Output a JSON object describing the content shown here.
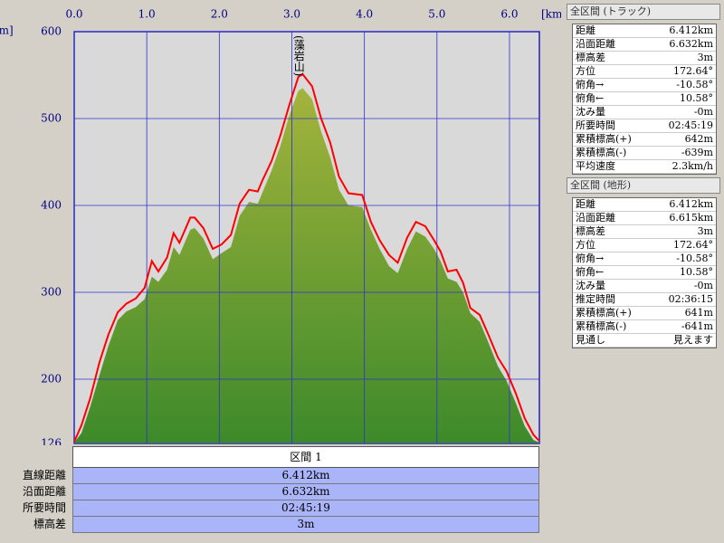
{
  "chart_data": {
    "type": "area",
    "x": [
      0,
      0.1,
      0.22,
      0.35,
      0.47,
      0.6,
      0.72,
      0.85,
      0.97,
      1.07,
      1.16,
      1.28,
      1.37,
      1.45,
      1.6,
      1.66,
      1.78,
      1.91,
      2.03,
      2.16,
      2.28,
      2.41,
      2.53,
      2.59,
      2.72,
      2.84,
      2.97,
      3.09,
      3.15,
      3.28,
      3.4,
      3.53,
      3.65,
      3.78,
      3.97,
      4.09,
      4.21,
      4.34,
      4.46,
      4.59,
      4.71,
      4.84,
      4.96,
      5.05,
      5.15,
      5.27,
      5.36,
      5.46,
      5.59,
      5.71,
      5.84,
      5.96,
      6.09,
      6.21,
      6.33,
      6.41
    ],
    "series": [
      {
        "color": "#ff0000",
        "values": [
          128,
          147,
          178,
          220,
          251,
          277,
          287,
          293,
          305,
          336,
          324,
          340,
          368,
          357,
          386,
          386,
          374,
          350,
          355,
          366,
          402,
          418,
          416,
          428,
          451,
          480,
          517,
          548,
          551,
          537,
          501,
          472,
          433,
          414,
          412,
          381,
          360,
          343,
          334,
          363,
          381,
          376,
          360,
          347,
          324,
          326,
          311,
          282,
          274,
          251,
          225,
          209,
          183,
          155,
          136,
          129
        ]
      },
      {
        "color": "#6f9a2e",
        "values": [
          127,
          138,
          168,
          205,
          238,
          268,
          278,
          283,
          292,
          318,
          312,
          326,
          352,
          343,
          372,
          374,
          362,
          338,
          345,
          352,
          388,
          404,
          402,
          414,
          440,
          468,
          505,
          532,
          535,
          522,
          486,
          455,
          418,
          400,
          398,
          372,
          350,
          330,
          322,
          350,
          370,
          364,
          350,
          336,
          316,
          312,
          300,
          276,
          266,
          242,
          215,
          198,
          172,
          146,
          130,
          127
        ]
      }
    ],
    "xlim": [
      0,
      6.412
    ],
    "xticks": [
      {
        "value": 0,
        "label": "0.0"
      },
      {
        "value": 1,
        "label": "1.0"
      },
      {
        "value": 2,
        "label": "2.0"
      },
      {
        "value": 3,
        "label": "3.0"
      },
      {
        "value": 4,
        "label": "4.0"
      },
      {
        "value": 5,
        "label": "5.0"
      },
      {
        "value": 6,
        "label": "6.0"
      }
    ],
    "ylim": [
      126,
      600
    ],
    "yticks": [
      126,
      200,
      300,
      400,
      500,
      600
    ],
    "x_unit": "[km]",
    "y_unit": "[m]",
    "grid": true,
    "annotations": [
      {
        "text": "(藻岩山)",
        "x": 3.09
      }
    ]
  },
  "side_panel": [
    {
      "title": "全区間 (トラック)",
      "rows": [
        [
          "距離",
          "6.412km"
        ],
        [
          "沿面距離",
          "6.632km"
        ],
        [
          "標高差",
          "3m"
        ],
        [
          "方位",
          "172.64°"
        ],
        [
          "俯角→",
          "-10.58°"
        ],
        [
          "俯角←",
          "10.58°"
        ],
        [
          "沈み量",
          "-0m"
        ],
        [
          "所要時間",
          "02:45:19"
        ],
        [
          "累積標高(+)",
          "642m"
        ],
        [
          "累積標高(-)",
          "-639m"
        ],
        [
          "平均速度",
          "2.3km/h"
        ]
      ]
    },
    {
      "title": "全区間 (地形)",
      "rows": [
        [
          "距離",
          "6.412km"
        ],
        [
          "沿面距離",
          "6.615km"
        ],
        [
          "標高差",
          "3m"
        ],
        [
          "方位",
          "172.64°"
        ],
        [
          "俯角→",
          "-10.58°"
        ],
        [
          "俯角←",
          "10.58°"
        ],
        [
          "沈み量",
          "-0m"
        ],
        [
          "推定時間",
          "02:36:15"
        ],
        [
          "累積標高(+)",
          "641m"
        ],
        [
          "累積標高(-)",
          "-641m"
        ],
        [
          "見通し",
          "見えます"
        ]
      ]
    }
  ],
  "bottom_table": {
    "header": "区間 1",
    "rows": [
      [
        "直線距離",
        "6.412km"
      ],
      [
        "沿面距離",
        "6.632km"
      ],
      [
        "所要時間",
        "02:45:19"
      ],
      [
        "標高差",
        "3m"
      ]
    ]
  }
}
